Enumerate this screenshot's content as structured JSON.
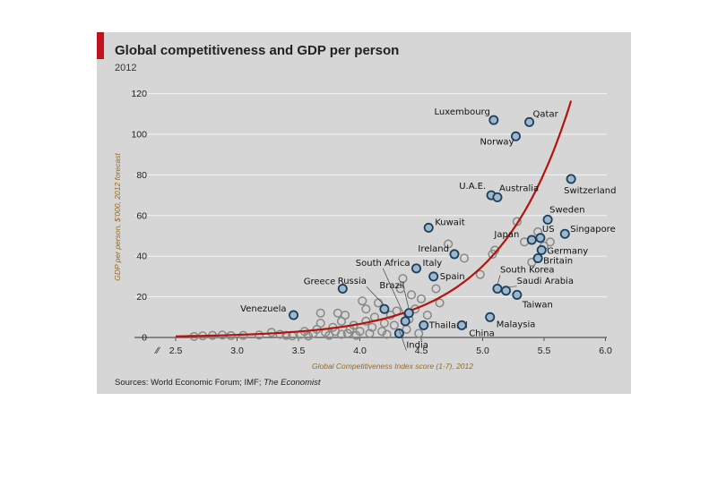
{
  "header": {
    "title": "Global competitiveness and GDP per person",
    "subtitle": "2012"
  },
  "footer": {
    "source_prefix": "Sources: World Economic Forum; IMF; ",
    "source_italic": "The Economist"
  },
  "colors": {
    "background": "#d6d6d6",
    "accent": "#c1121f",
    "curve": "#b5140e",
    "highlight_point": "#1b3f5e",
    "other_point": "#888888"
  },
  "chart_data": {
    "type": "scatter",
    "title": "Global competitiveness and GDP per person",
    "subtitle": "2012",
    "xlabel": "Global Competitiveness Index score (1-7), 2012",
    "ylabel": "GDP per person, $'000, 2012 forecast",
    "xlim": [
      2.4,
      6.0
    ],
    "ylim": [
      0,
      125
    ],
    "x_ticks": [
      "2.5",
      "3.0",
      "3.5",
      "4.0",
      "4.5",
      "5.0",
      "5.5",
      "6.0"
    ],
    "y_ticks": [
      "0",
      "20",
      "40",
      "60",
      "80",
      "100",
      "120"
    ],
    "grid": "horizontal",
    "labeled_points": [
      {
        "label": "Luxembourg",
        "x": 5.09,
        "y": 107
      },
      {
        "label": "Qatar",
        "x": 5.38,
        "y": 106
      },
      {
        "label": "Norway",
        "x": 5.27,
        "y": 99
      },
      {
        "label": "Switzerland",
        "x": 5.72,
        "y": 78
      },
      {
        "label": "U.A.E.",
        "x": 5.07,
        "y": 70
      },
      {
        "label": "Australia",
        "x": 5.12,
        "y": 69
      },
      {
        "label": "Sweden",
        "x": 5.53,
        "y": 58
      },
      {
        "label": "Singapore",
        "x": 5.67,
        "y": 51
      },
      {
        "label": "Kuwait",
        "x": 4.56,
        "y": 54
      },
      {
        "label": "Japan",
        "x": 5.4,
        "y": 48
      },
      {
        "label": "US",
        "x": 5.47,
        "y": 49
      },
      {
        "label": "Ireland",
        "x": 4.77,
        "y": 41
      },
      {
        "label": "Germany",
        "x": 5.48,
        "y": 43
      },
      {
        "label": "Britain",
        "x": 5.45,
        "y": 39
      },
      {
        "label": "Italy",
        "x": 4.46,
        "y": 34
      },
      {
        "label": "Spain",
        "x": 4.6,
        "y": 30
      },
      {
        "label": "Brazil",
        "x": 4.4,
        "y": 12
      },
      {
        "label": "Russia",
        "x": 4.2,
        "y": 14
      },
      {
        "label": "South Africa",
        "x": 4.37,
        "y": 8
      },
      {
        "label": "Greece",
        "x": 3.86,
        "y": 24
      },
      {
        "label": "South Korea",
        "x": 5.12,
        "y": 24
      },
      {
        "label": "Saudi Arabia",
        "x": 5.19,
        "y": 23
      },
      {
        "label": "Taiwan",
        "x": 5.28,
        "y": 21
      },
      {
        "label": "Venezuela",
        "x": 3.46,
        "y": 11
      },
      {
        "label": "Thailand",
        "x": 4.52,
        "y": 6
      },
      {
        "label": "Malaysia",
        "x": 5.06,
        "y": 10
      },
      {
        "label": "India",
        "x": 4.32,
        "y": 2
      },
      {
        "label": "China",
        "x": 4.83,
        "y": 6
      }
    ],
    "other_points": [
      [
        2.65,
        0.5
      ],
      [
        2.72,
        0.8
      ],
      [
        2.8,
        1.0
      ],
      [
        2.88,
        1.2
      ],
      [
        2.95,
        0.9
      ],
      [
        3.05,
        1.0
      ],
      [
        3.18,
        1.2
      ],
      [
        3.28,
        2.5
      ],
      [
        3.35,
        1.5
      ],
      [
        3.4,
        1.0
      ],
      [
        3.45,
        0.8
      ],
      [
        3.52,
        1.5
      ],
      [
        3.55,
        3.0
      ],
      [
        3.58,
        0.7
      ],
      [
        3.62,
        2.0
      ],
      [
        3.65,
        4.0
      ],
      [
        3.68,
        7.0
      ],
      [
        3.68,
        12.0
      ],
      [
        3.72,
        2.5
      ],
      [
        3.75,
        1.0
      ],
      [
        3.78,
        5.0
      ],
      [
        3.8,
        3.0
      ],
      [
        3.82,
        12.0
      ],
      [
        3.85,
        8.0
      ],
      [
        3.85,
        1.5
      ],
      [
        3.88,
        11.0
      ],
      [
        3.9,
        2.0
      ],
      [
        3.92,
        4.0
      ],
      [
        3.95,
        6.0
      ],
      [
        3.97,
        1.0
      ],
      [
        4.0,
        3.0
      ],
      [
        4.02,
        18.0
      ],
      [
        4.05,
        14.0
      ],
      [
        4.05,
        8.0
      ],
      [
        4.08,
        2.0
      ],
      [
        4.1,
        5.0
      ],
      [
        4.12,
        10.0
      ],
      [
        4.15,
        17.0
      ],
      [
        4.18,
        3.0
      ],
      [
        4.2,
        7.0
      ],
      [
        4.22,
        1.5
      ],
      [
        4.25,
        11.0
      ],
      [
        4.28,
        6.0
      ],
      [
        4.3,
        13.0
      ],
      [
        4.33,
        24.0
      ],
      [
        4.35,
        29.0
      ],
      [
        4.38,
        4.0
      ],
      [
        4.4,
        9.0
      ],
      [
        4.42,
        21.0
      ],
      [
        4.45,
        14.0
      ],
      [
        4.48,
        2.0
      ],
      [
        4.5,
        19.0
      ],
      [
        4.55,
        11.0
      ],
      [
        4.62,
        24.0
      ],
      [
        4.65,
        17.0
      ],
      [
        4.72,
        46.0
      ],
      [
        4.85,
        39.0
      ],
      [
        4.98,
        31.0
      ],
      [
        5.08,
        41.0
      ],
      [
        5.1,
        43.0
      ],
      [
        5.28,
        57.0
      ],
      [
        5.34,
        47.0
      ],
      [
        5.4,
        37.0
      ],
      [
        5.45,
        52.0
      ],
      [
        5.5,
        45.0
      ],
      [
        5.55,
        47.0
      ]
    ],
    "trend_curve": {
      "type": "exponential"
    }
  }
}
